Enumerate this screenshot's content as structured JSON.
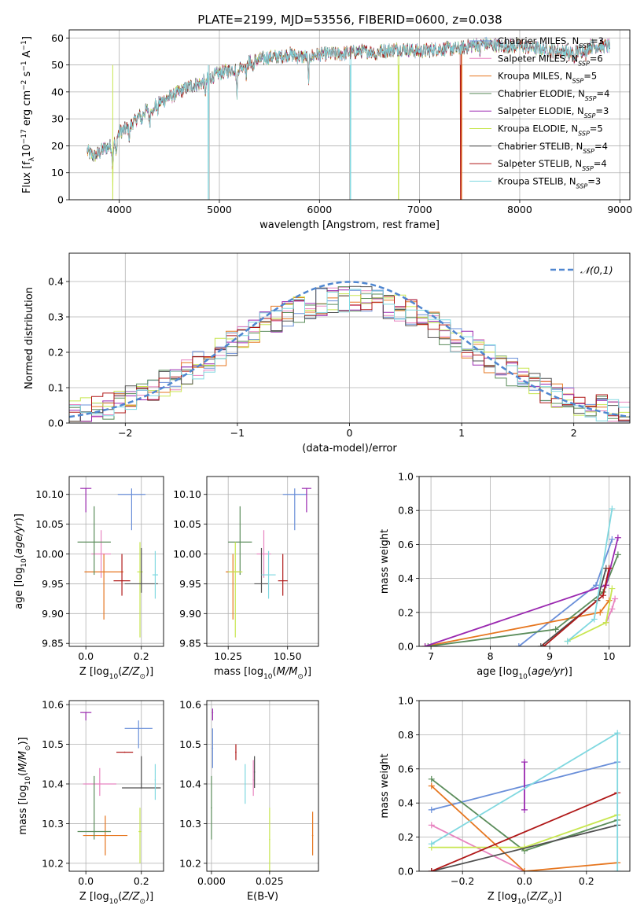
{
  "page": {
    "title": "PLATE=2199, MJD=53556, FIBERID=0600, z=0.038"
  },
  "models": [
    {
      "name": "Chabrier MILES",
      "nssp": "3",
      "color": "#6a8fd9"
    },
    {
      "name": "Salpeter MILES",
      "nssp": "6",
      "color": "#e884c0"
    },
    {
      "name": "Kroupa MILES",
      "nssp": "5",
      "color": "#e6761f"
    },
    {
      "name": "Chabrier ELODIE",
      "nssp": "4",
      "color": "#5a8c5a"
    },
    {
      "name": "Salpeter ELODIE",
      "nssp": "3",
      "color": "#9a28b0"
    },
    {
      "name": "Kroupa ELODIE",
      "nssp": "5",
      "color": "#c8e650"
    },
    {
      "name": "Chabrier STELIB",
      "nssp": "4",
      "color": "#505050"
    },
    {
      "name": "Salpeter STELIB",
      "nssp": "4",
      "color": "#b01818"
    },
    {
      "name": "Kroupa STELIB",
      "nssp": "3",
      "color": "#80d8e0"
    }
  ],
  "chart_data": [
    {
      "id": "spectrum",
      "type": "line",
      "title": "PLATE=2199, MJD=53556, FIBERID=0600, z=0.038",
      "xlabel": "wavelength [Angstrom, rest frame]",
      "ylabel": "Flux [f_λ 10^-17 erg cm^-2 s^-1 A^-1]",
      "xlim": [
        3500,
        9100
      ],
      "ylim": [
        0,
        63
      ],
      "xticks": [
        4000,
        5000,
        6000,
        7000,
        8000,
        9000
      ],
      "yticks": [
        0,
        10,
        20,
        30,
        40,
        50,
        60
      ],
      "legend_position": "right",
      "continuum": [
        [
          3680,
          18
        ],
        [
          3750,
          16
        ],
        [
          3850,
          19
        ],
        [
          3920,
          20
        ],
        [
          3960,
          22
        ],
        [
          4000,
          25
        ],
        [
          4100,
          27
        ],
        [
          4200,
          31
        ],
        [
          4300,
          34
        ],
        [
          4400,
          36
        ],
        [
          4500,
          38
        ],
        [
          4600,
          40
        ],
        [
          4700,
          42
        ],
        [
          4800,
          43
        ],
        [
          4900,
          45
        ],
        [
          5000,
          47
        ],
        [
          5100,
          48
        ],
        [
          5200,
          49
        ],
        [
          5300,
          51
        ],
        [
          5400,
          52
        ],
        [
          5500,
          53
        ],
        [
          5600,
          53
        ],
        [
          5700,
          54
        ],
        [
          5800,
          53
        ],
        [
          5900,
          53
        ],
        [
          6000,
          54
        ],
        [
          6200,
          54
        ],
        [
          6400,
          55
        ],
        [
          6600,
          55
        ],
        [
          6800,
          56
        ],
        [
          7000,
          55
        ],
        [
          7200,
          56
        ],
        [
          7400,
          56
        ],
        [
          7600,
          58
        ],
        [
          7800,
          57
        ],
        [
          8000,
          57
        ],
        [
          8200,
          56
        ],
        [
          8400,
          55
        ],
        [
          8600,
          55
        ],
        [
          8700,
          57
        ],
        [
          8900,
          57
        ]
      ],
      "absorption": [
        [
          3934,
          7
        ],
        [
          3968,
          6
        ],
        [
          4101,
          4
        ],
        [
          4226,
          3
        ],
        [
          4304,
          6
        ],
        [
          4340,
          3
        ],
        [
          4383,
          3
        ],
        [
          4861,
          4
        ],
        [
          5175,
          9
        ],
        [
          5270,
          4
        ],
        [
          5335,
          3
        ],
        [
          5890,
          8
        ],
        [
          6563,
          3
        ],
        [
          7600,
          4
        ],
        [
          8498,
          3
        ],
        [
          8542,
          4
        ],
        [
          8662,
          3
        ]
      ],
      "gaps": [
        {
          "x": 3935,
          "color": "#c8e650"
        },
        {
          "x": 4890,
          "color": "#80d8e0"
        },
        {
          "x": 4900,
          "color": "#c0c0c0"
        },
        {
          "x": 6300,
          "color": "#c0c0c0"
        },
        {
          "x": 6310,
          "color": "#80d8e0"
        },
        {
          "x": 6790,
          "color": "#c8e650"
        },
        {
          "x": 7410,
          "color": "#b01818"
        },
        {
          "x": 7420,
          "color": "#e6761f"
        }
      ]
    },
    {
      "id": "residuals",
      "type": "histogram",
      "xlabel": "(data-model)/error",
      "ylabel": "Normed distribution",
      "xlim": [
        -2.5,
        2.5
      ],
      "ylim": [
        0,
        0.48
      ],
      "xticks": [
        -2,
        -1,
        0,
        1,
        2
      ],
      "yticks": [
        0.0,
        0.1,
        0.2,
        0.3,
        0.4
      ],
      "bin_width": 0.1,
      "legend_entry": "N(0,1)",
      "reference": {
        "mu": 0,
        "sigma": 1
      }
    },
    {
      "id": "age-vs-z",
      "type": "scatter",
      "xlabel": "Z [log10(Z/Z_sun)]",
      "ylabel": "age  [log10(age/yr)]",
      "xlim": [
        -0.06,
        0.28
      ],
      "ylim": [
        9.845,
        10.13
      ],
      "xticks": [
        0.0,
        0.2
      ],
      "yticks": [
        9.85,
        9.9,
        9.95,
        10.0,
        10.05,
        10.1
      ],
      "points": [
        {
          "model": "Chabrier MILES",
          "x": 0.165,
          "y": 10.1,
          "xerr": 0.05,
          "yerr": [
            0.06,
            0.01
          ]
        },
        {
          "model": "Salpeter MILES",
          "x": 0.055,
          "y": 10.0,
          "xerr": 0.035,
          "yerr": [
            0.04,
            0.04
          ]
        },
        {
          "model": "Kroupa MILES",
          "x": 0.065,
          "y": 9.97,
          "xerr": 0.07,
          "yerr": [
            0.08,
            0.03
          ]
        },
        {
          "model": "Chabrier ELODIE",
          "x": 0.03,
          "y": 10.02,
          "xerr": 0.06,
          "yerr": [
            0.055,
            0.06
          ]
        },
        {
          "model": "Salpeter ELODIE",
          "x": 0.0,
          "y": 10.11,
          "xerr": 0.02,
          "yerr": [
            0.04,
            0.0
          ]
        },
        {
          "model": "Kroupa ELODIE",
          "x": 0.195,
          "y": 9.97,
          "xerr": 0.01,
          "yerr": [
            0.11,
            0.05
          ]
        },
        {
          "model": "Chabrier STELIB",
          "x": 0.2,
          "y": 9.95,
          "xerr": 0.06,
          "yerr": [
            0.015,
            0.06
          ]
        },
        {
          "model": "Salpeter STELIB",
          "x": 0.13,
          "y": 9.955,
          "xerr": 0.03,
          "yerr": [
            0.025,
            0.045
          ]
        },
        {
          "model": "Kroupa STELIB",
          "x": 0.25,
          "y": 9.965,
          "xerr": 0.01,
          "yerr": [
            0.04,
            0.04
          ]
        }
      ]
    },
    {
      "id": "age-vs-mass",
      "type": "scatter",
      "xlabel": "mass [log10(M/M_sun)]",
      "ylabel": "",
      "xlim": [
        10.16,
        10.63
      ],
      "ylim": [
        9.845,
        10.13
      ],
      "xticks": [
        10.25,
        10.5
      ],
      "yticks": [
        9.85,
        9.9,
        9.95,
        10.0,
        10.05,
        10.1
      ],
      "points": [
        {
          "model": "Chabrier MILES",
          "x": 10.53,
          "y": 10.1,
          "xerr": 0.05,
          "yerr": [
            0.06,
            0.01
          ]
        },
        {
          "model": "Salpeter MILES",
          "x": 10.4,
          "y": 10.0,
          "xerr": 0.03,
          "yerr": [
            0.04,
            0.04
          ]
        },
        {
          "model": "Kroupa MILES",
          "x": 10.27,
          "y": 9.97,
          "xerr": 0.03,
          "yerr": [
            0.08,
            0.03
          ]
        },
        {
          "model": "Chabrier ELODIE",
          "x": 10.3,
          "y": 10.02,
          "xerr": 0.05,
          "yerr": [
            0.055,
            0.06
          ]
        },
        {
          "model": "Salpeter ELODIE",
          "x": 10.58,
          "y": 10.11,
          "xerr": 0.02,
          "yerr": [
            0.04,
            0.0
          ]
        },
        {
          "model": "Kroupa ELODIE",
          "x": 10.28,
          "y": 9.97,
          "xerr": 0.03,
          "yerr": [
            0.11,
            0.05
          ]
        },
        {
          "model": "Chabrier STELIB",
          "x": 10.39,
          "y": 9.95,
          "xerr": 0.03,
          "yerr": [
            0.015,
            0.06
          ]
        },
        {
          "model": "Salpeter STELIB",
          "x": 10.48,
          "y": 9.955,
          "xerr": 0.02,
          "yerr": [
            0.025,
            0.045
          ]
        },
        {
          "model": "Kroupa STELIB",
          "x": 10.42,
          "y": 9.965,
          "xerr": 0.03,
          "yerr": [
            0.04,
            0.04
          ]
        }
      ]
    },
    {
      "id": "weight-vs-age",
      "type": "line",
      "xlabel": "age  [log10(age/yr)]",
      "ylabel": "mass weight",
      "xlim": [
        6.8,
        10.35
      ],
      "ylim": [
        0,
        1.0
      ],
      "xticks": [
        7,
        8,
        9,
        10
      ],
      "yticks": [
        0.0,
        0.2,
        0.4,
        0.6,
        0.8,
        1.0
      ],
      "series": [
        {
          "model": "Chabrier MILES",
          "points": [
            [
              8.48,
              0.0
            ],
            [
              9.78,
              0.36
            ],
            [
              10.05,
              0.63
            ]
          ]
        },
        {
          "model": "Salpeter MILES",
          "points": [
            [
              9.95,
              0.14
            ],
            [
              10.05,
              0.22
            ],
            [
              10.1,
              0.28
            ]
          ]
        },
        {
          "model": "Kroupa MILES",
          "points": [
            [
              6.9,
              0.0
            ],
            [
              9.85,
              0.2
            ],
            [
              10.0,
              0.27
            ]
          ]
        },
        {
          "model": "Chabrier ELODIE",
          "points": [
            [
              6.95,
              0.0
            ],
            [
              9.1,
              0.1
            ],
            [
              9.9,
              0.32
            ],
            [
              10.15,
              0.54
            ]
          ]
        },
        {
          "model": "Salpeter ELODIE",
          "points": [
            [
              6.9,
              0.0
            ],
            [
              9.95,
              0.36
            ],
            [
              10.15,
              0.64
            ]
          ]
        },
        {
          "model": "Kroupa ELODIE",
          "points": [
            [
              9.3,
              0.03
            ],
            [
              9.95,
              0.14
            ],
            [
              10.05,
              0.34
            ]
          ]
        },
        {
          "model": "Chabrier STELIB",
          "points": [
            [
              8.85,
              0.0
            ],
            [
              9.8,
              0.27
            ],
            [
              9.95,
              0.46
            ]
          ]
        },
        {
          "model": "Salpeter STELIB",
          "points": [
            [
              8.9,
              0.0
            ],
            [
              9.9,
              0.3
            ],
            [
              10.0,
              0.46
            ]
          ]
        },
        {
          "model": "Kroupa STELIB",
          "points": [
            [
              9.3,
              0.03
            ],
            [
              9.75,
              0.16
            ],
            [
              10.05,
              0.81
            ]
          ]
        }
      ]
    },
    {
      "id": "mass-vs-z",
      "type": "scatter",
      "xlabel": "Z [log10(Z/Z_sun)]",
      "ylabel": "mass [log10(M/M_sun)]",
      "xlim": [
        -0.06,
        0.28
      ],
      "ylim": [
        10.18,
        10.61
      ],
      "xticks": [
        0.0,
        0.2
      ],
      "yticks": [
        10.2,
        10.3,
        10.4,
        10.5,
        10.6
      ],
      "points": [
        {
          "model": "Chabrier MILES",
          "x": 0.19,
          "y": 10.54,
          "xerr": 0.05,
          "yerr": [
            0.05,
            0.02
          ]
        },
        {
          "model": "Salpeter MILES",
          "x": 0.05,
          "y": 10.4,
          "xerr": 0.06,
          "yerr": [
            0.03,
            0.04
          ]
        },
        {
          "model": "Kroupa MILES",
          "x": 0.07,
          "y": 10.27,
          "xerr": 0.08,
          "yerr": [
            0.05,
            0.05
          ]
        },
        {
          "model": "Chabrier ELODIE",
          "x": 0.03,
          "y": 10.28,
          "xerr": 0.06,
          "yerr": [
            0.02,
            0.14
          ]
        },
        {
          "model": "Salpeter ELODIE",
          "x": 0.0,
          "y": 10.58,
          "xerr": 0.02,
          "yerr": [
            0.02,
            0.0
          ]
        },
        {
          "model": "Kroupa ELODIE",
          "x": 0.195,
          "y": 10.28,
          "xerr": 0.005,
          "yerr": [
            0.08,
            0.06
          ]
        },
        {
          "model": "Chabrier STELIB",
          "x": 0.2,
          "y": 10.39,
          "xerr": 0.07,
          "yerr": [
            0.0,
            0.08
          ]
        },
        {
          "model": "Salpeter STELIB",
          "x": 0.14,
          "y": 10.48,
          "xerr": 0.03,
          "yerr": [
            0.0,
            0.0
          ]
        },
        {
          "model": "Kroupa STELIB",
          "x": 0.25,
          "y": 10.41,
          "xerr": 0.0,
          "yerr": [
            0.05,
            0.04
          ]
        }
      ]
    },
    {
      "id": "mass-vs-ebv",
      "type": "scatter",
      "xlabel": "E(B-V)",
      "ylabel": "",
      "xlim": [
        -0.002,
        0.046
      ],
      "ylim": [
        10.18,
        10.61
      ],
      "xticks": [
        0.0,
        0.025
      ],
      "yticks": [
        10.2,
        10.3,
        10.4,
        10.5,
        10.6
      ],
      "points": [
        {
          "model": "Chabrier MILES",
          "x": 0.0005,
          "y": 10.49,
          "yerr": [
            0.05,
            0.05
          ]
        },
        {
          "model": "Salpeter MILES",
          "x": 0.018,
          "y": 10.41,
          "yerr": [
            0.04,
            0.05
          ]
        },
        {
          "model": "Kroupa MILES",
          "x": 0.0435,
          "y": 10.27,
          "yerr": [
            0.05,
            0.06
          ]
        },
        {
          "model": "Chabrier ELODIE",
          "x": 0.0,
          "y": 10.34,
          "yerr": [
            0.08,
            0.08
          ]
        },
        {
          "model": "Salpeter ELODIE",
          "x": 0.0005,
          "y": 10.58,
          "yerr": [
            0.02,
            0.01
          ]
        },
        {
          "model": "Kroupa ELODIE",
          "x": 0.025,
          "y": 10.26,
          "yerr": [
            0.08,
            0.08
          ]
        },
        {
          "model": "Chabrier STELIB",
          "x": 0.0185,
          "y": 10.43,
          "yerr": [
            0.04,
            0.04
          ]
        },
        {
          "model": "Salpeter STELIB",
          "x": 0.0105,
          "y": 10.48,
          "yerr": [
            0.02,
            0.02
          ]
        },
        {
          "model": "Kroupa STELIB",
          "x": 0.0145,
          "y": 10.4,
          "yerr": [
            0.05,
            0.05
          ]
        }
      ]
    },
    {
      "id": "weight-vs-z",
      "type": "line",
      "xlabel": "Z [log10(Z/Z_sun)]",
      "ylabel": "mass weight",
      "xlim": [
        -0.34,
        0.34
      ],
      "ylim": [
        0,
        1.0
      ],
      "xticks": [
        -0.2,
        0.0,
        0.2
      ],
      "yticks": [
        0.0,
        0.2,
        0.4,
        0.6,
        0.8,
        1.0
      ],
      "series": [
        {
          "model": "Chabrier MILES",
          "points": [
            [
              -0.3,
              0.36
            ],
            [
              0.3,
              0.64
            ]
          ]
        },
        {
          "model": "Salpeter MILES",
          "points": [
            [
              -0.3,
              0.27
            ],
            [
              0.0,
              0.0
            ]
          ]
        },
        {
          "model": "Kroupa MILES",
          "points": [
            [
              -0.3,
              0.5
            ],
            [
              0.0,
              0.0
            ],
            [
              0.3,
              0.05
            ]
          ]
        },
        {
          "model": "Chabrier ELODIE",
          "points": [
            [
              -0.3,
              0.54
            ],
            [
              0.0,
              0.12
            ],
            [
              0.3,
              0.3
            ]
          ]
        },
        {
          "model": "Salpeter ELODIE",
          "points": [
            [
              0.0,
              0.36
            ],
            [
              0.0,
              0.64
            ]
          ]
        },
        {
          "model": "Kroupa ELODIE",
          "points": [
            [
              -0.3,
              0.14
            ],
            [
              0.0,
              0.14
            ],
            [
              0.3,
              0.33
            ]
          ]
        },
        {
          "model": "Chabrier STELIB",
          "points": [
            [
              -0.3,
              0.0
            ],
            [
              0.3,
              0.27
            ]
          ]
        },
        {
          "model": "Salpeter STELIB",
          "points": [
            [
              -0.3,
              0.0
            ],
            [
              0.3,
              0.46
            ]
          ]
        },
        {
          "model": "Kroupa STELIB",
          "points": [
            [
              -0.3,
              0.16
            ],
            [
              0.3,
              0.81
            ],
            [
              0.3,
              0.0
            ]
          ]
        }
      ]
    }
  ]
}
